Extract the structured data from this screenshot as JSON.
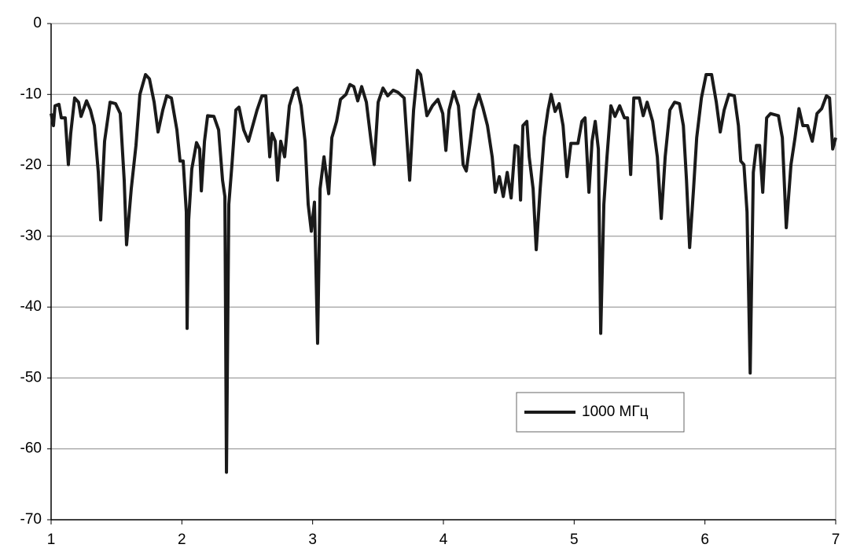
{
  "chart_data": {
    "type": "line",
    "x": [
      1.0,
      1.018,
      1.03,
      1.06,
      1.078,
      1.108,
      1.132,
      1.15,
      1.18,
      1.21,
      1.229,
      1.271,
      1.301,
      1.331,
      1.361,
      1.379,
      1.409,
      1.451,
      1.493,
      1.529,
      1.559,
      1.577,
      1.613,
      1.649,
      1.679,
      1.722,
      1.752,
      1.788,
      1.818,
      1.854,
      1.884,
      1.92,
      1.962,
      1.986,
      2.01,
      2.034,
      2.04,
      2.052,
      2.076,
      2.112,
      2.136,
      2.149,
      2.173,
      2.197,
      2.245,
      2.281,
      2.311,
      2.329,
      2.341,
      2.359,
      2.383,
      2.413,
      2.437,
      2.473,
      2.509,
      2.533,
      2.575,
      2.612,
      2.642,
      2.672,
      2.69,
      2.714,
      2.732,
      2.756,
      2.786,
      2.822,
      2.858,
      2.882,
      2.912,
      2.942,
      2.966,
      2.99,
      3.014,
      3.038,
      3.057,
      3.087,
      3.123,
      3.147,
      3.183,
      3.213,
      3.255,
      3.285,
      3.315,
      3.345,
      3.375,
      3.411,
      3.447,
      3.471,
      3.501,
      3.538,
      3.574,
      3.616,
      3.652,
      3.7,
      3.742,
      3.772,
      3.802,
      3.826,
      3.85,
      3.874,
      3.916,
      3.958,
      3.995,
      4.019,
      4.043,
      4.079,
      4.115,
      4.151,
      4.175,
      4.205,
      4.235,
      4.271,
      4.301,
      4.337,
      4.373,
      4.397,
      4.428,
      4.458,
      4.488,
      4.518,
      4.548,
      4.572,
      4.59,
      4.608,
      4.638,
      4.656,
      4.686,
      4.71,
      4.74,
      4.77,
      4.8,
      4.824,
      4.854,
      4.885,
      4.915,
      4.945,
      4.975,
      5.029,
      5.059,
      5.083,
      5.113,
      5.137,
      5.161,
      5.185,
      5.203,
      5.227,
      5.251,
      5.281,
      5.312,
      5.348,
      5.384,
      5.408,
      5.432,
      5.456,
      5.498,
      5.528,
      5.558,
      5.6,
      5.636,
      5.666,
      5.696,
      5.732,
      5.768,
      5.805,
      5.835,
      5.859,
      5.883,
      5.913,
      5.937,
      5.973,
      6.009,
      6.051,
      6.087,
      6.117,
      6.147,
      6.183,
      6.225,
      6.256,
      6.274,
      6.298,
      6.322,
      6.346,
      6.37,
      6.394,
      6.418,
      6.442,
      6.472,
      6.502,
      6.562,
      6.592,
      6.622,
      6.658,
      6.689,
      6.719,
      6.749,
      6.785,
      6.821,
      6.857,
      6.893,
      6.929,
      6.953,
      6.977,
      7.0
    ],
    "series": [
      {
        "name": "1000 МГц",
        "color": "#1a1a1a",
        "values": [
          -12.7,
          -14.4,
          -11.6,
          -11.4,
          -13.3,
          -13.3,
          -19.9,
          -15.5,
          -10.5,
          -11.1,
          -13.1,
          -10.9,
          -12.2,
          -14.4,
          -21,
          -27.7,
          -16.6,
          -11.1,
          -11.3,
          -12.7,
          -22.1,
          -31.2,
          -23.3,
          -17.2,
          -10,
          -7.2,
          -7.8,
          -11.1,
          -15.3,
          -12.2,
          -10.2,
          -10.5,
          -15,
          -19.4,
          -19.4,
          -26.6,
          -43,
          -27.7,
          -20.5,
          -16.8,
          -17.7,
          -23.6,
          -16.6,
          -13,
          -13.1,
          -15,
          -22.1,
          -24.4,
          -63.3,
          -25.5,
          -19.9,
          -12.2,
          -11.8,
          -15,
          -16.6,
          -15,
          -12.2,
          -10.2,
          -10.2,
          -18.8,
          -15.5,
          -16.6,
          -22.1,
          -16.6,
          -18.8,
          -11.6,
          -9.4,
          -9.1,
          -11.6,
          -16.6,
          -25.5,
          -29.3,
          -25.2,
          -45.1,
          -23.3,
          -18.8,
          -24,
          -16.1,
          -13.8,
          -10.7,
          -10,
          -8.6,
          -8.9,
          -10.9,
          -8.9,
          -11.1,
          -16.6,
          -19.9,
          -11.1,
          -9.1,
          -10.2,
          -9.4,
          -9.7,
          -10.5,
          -22.1,
          -12.2,
          -6.6,
          -7.2,
          -10,
          -13,
          -11.6,
          -10.7,
          -12.7,
          -17.9,
          -12.2,
          -9.6,
          -11.6,
          -19.9,
          -20.8,
          -16.6,
          -12.2,
          -10,
          -11.8,
          -14.4,
          -18.8,
          -23.8,
          -21.6,
          -24.4,
          -21,
          -24.6,
          -17.2,
          -17.4,
          -24.9,
          -14.4,
          -13.8,
          -18.8,
          -23.3,
          -31.9,
          -23.3,
          -16.1,
          -12.2,
          -10,
          -12.4,
          -11.3,
          -14.4,
          -21.6,
          -16.9,
          -16.9,
          -13.8,
          -13.3,
          -23.8,
          -16.6,
          -13.8,
          -17.7,
          -43.7,
          -25.5,
          -18.8,
          -11.6,
          -13.1,
          -11.6,
          -13.3,
          -13.3,
          -21.3,
          -10.5,
          -10.5,
          -13,
          -11.1,
          -13.8,
          -18.8,
          -27.5,
          -18.8,
          -12.2,
          -11.1,
          -11.3,
          -14.4,
          -22.1,
          -31.6,
          -23.3,
          -16.1,
          -10.5,
          -7.2,
          -7.2,
          -11.1,
          -15.3,
          -12.2,
          -10,
          -10.2,
          -14.4,
          -19.4,
          -19.9,
          -26.6,
          -49.3,
          -21,
          -17.2,
          -17.2,
          -23.8,
          -13.3,
          -12.7,
          -13,
          -16.1,
          -28.8,
          -19.9,
          -16.1,
          -12,
          -14.4,
          -14.4,
          -16.6,
          -12.7,
          -12,
          -10.2,
          -10.5,
          -17.7,
          -16.1
        ]
      }
    ],
    "xlim": [
      1,
      7
    ],
    "xticks": [
      1,
      2,
      3,
      4,
      5,
      6,
      7
    ],
    "ylim": [
      -70,
      0
    ],
    "yticks": [
      -70,
      -60,
      -50,
      -40,
      -30,
      -20,
      -10,
      0
    ],
    "grid": true,
    "legend": "lower right"
  }
}
